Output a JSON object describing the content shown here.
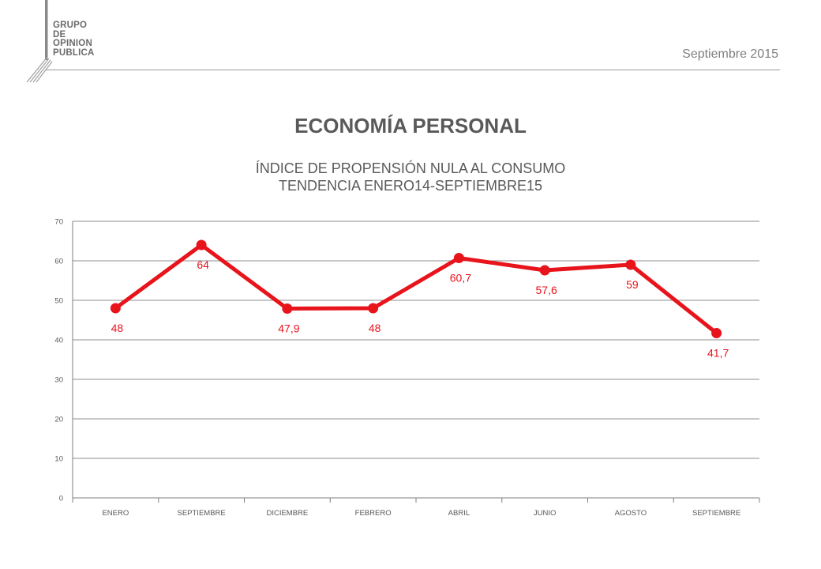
{
  "header": {
    "logo_lines": [
      "GRUPO",
      "DE",
      "OPINION",
      "PUBLICA"
    ],
    "date": "Septiembre 2015"
  },
  "titles": {
    "title": "ECONOMÍA PERSONAL",
    "subtitle_line1": "ÍNDICE DE PROPENSIÓN NULA AL CONSUMO",
    "subtitle_line2": "TENDENCIA ENERO14-SEPTIEMBRE15"
  },
  "chart_data": {
    "type": "line",
    "categories": [
      "ENERO",
      "SEPTIEMBRE",
      "DICIEMBRE",
      "FEBRERO",
      "ABRIL",
      "JUNIO",
      "AGOSTO",
      "SEPTIEMBRE"
    ],
    "values": [
      48,
      64,
      47.9,
      48,
      60.7,
      57.6,
      59,
      41.7
    ],
    "data_labels": [
      "48",
      "64",
      "47,9",
      "48",
      "60,7",
      "57,6",
      "59",
      "41,7"
    ],
    "ylim": [
      0,
      70
    ],
    "yticks": [
      0,
      10,
      20,
      30,
      40,
      50,
      60,
      70
    ],
    "grid": true,
    "color": "#e8141c",
    "axis_color": "#7f7f7f",
    "label_color": "#e8141c"
  }
}
